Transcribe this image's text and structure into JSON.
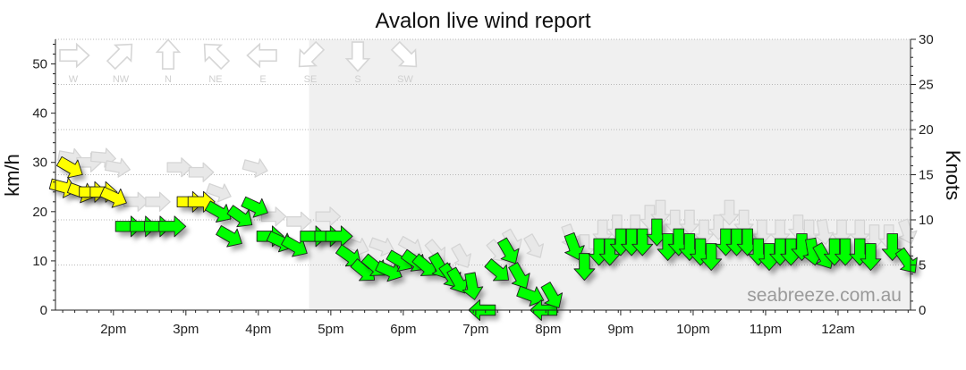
{
  "chart_data": {
    "type": "scatter",
    "title": "Avalon live wind report",
    "ylabel": "km/h",
    "y2label": "Knots",
    "watermark": "seabreeze.com.au",
    "ylim": [
      0,
      55
    ],
    "y2lim": [
      0,
      30
    ],
    "yticks": [
      0,
      10,
      20,
      30,
      40,
      50
    ],
    "y2ticks": [
      0,
      5,
      10,
      15,
      20,
      25,
      30
    ],
    "xlim": [
      13.2,
      25.0
    ],
    "xticks": [
      {
        "x": 14,
        "label": "2pm"
      },
      {
        "x": 15,
        "label": "3pm"
      },
      {
        "x": 16,
        "label": "4pm"
      },
      {
        "x": 17,
        "label": "5pm"
      },
      {
        "x": 18,
        "label": "6pm"
      },
      {
        "x": 19,
        "label": "7pm"
      },
      {
        "x": 20,
        "label": "8pm"
      },
      {
        "x": 21,
        "label": "9pm"
      },
      {
        "x": 22,
        "label": "10pm"
      },
      {
        "x": 23,
        "label": "11pm"
      },
      {
        "x": 24,
        "label": "12am"
      }
    ],
    "grid": "horizontal dotted",
    "night_shading_from": 16.7,
    "compass_legend": [
      {
        "label": "W",
        "angle": 0
      },
      {
        "label": "NW",
        "angle": 45
      },
      {
        "label": "N",
        "angle": 90
      },
      {
        "label": "NE",
        "angle": 135
      },
      {
        "label": "E",
        "angle": 180
      },
      {
        "label": "SE",
        "angle": 225
      },
      {
        "label": "S",
        "angle": 270
      },
      {
        "label": "SW",
        "angle": 315
      }
    ],
    "colors": {
      "light": "#ffff00",
      "moderate": "#00ff00",
      "gust": "#e8e8e8",
      "night": "#f0f0f0"
    },
    "series": [
      {
        "name": "wind",
        "points": [
          {
            "x": 13.3,
            "y": 25,
            "a": -15,
            "c": "light"
          },
          {
            "x": 13.4,
            "y": 29,
            "a": -30,
            "c": "light"
          },
          {
            "x": 13.55,
            "y": 24,
            "a": -20,
            "c": "light"
          },
          {
            "x": 13.7,
            "y": 24,
            "a": 0,
            "c": "light"
          },
          {
            "x": 13.85,
            "y": 24,
            "a": 0,
            "c": "light"
          },
          {
            "x": 14.0,
            "y": 23,
            "a": -25,
            "c": "light"
          },
          {
            "x": 14.2,
            "y": 17,
            "a": 0,
            "c": "moderate"
          },
          {
            "x": 14.4,
            "y": 17,
            "a": 0,
            "c": "moderate"
          },
          {
            "x": 14.6,
            "y": 17,
            "a": 0,
            "c": "moderate"
          },
          {
            "x": 14.8,
            "y": 17,
            "a": 0,
            "c": "moderate"
          },
          {
            "x": 15.05,
            "y": 22,
            "a": 0,
            "c": "light"
          },
          {
            "x": 15.2,
            "y": 22,
            "a": 0,
            "c": "light"
          },
          {
            "x": 15.45,
            "y": 20,
            "a": -30,
            "c": "moderate"
          },
          {
            "x": 15.6,
            "y": 15,
            "a": -30,
            "c": "moderate"
          },
          {
            "x": 15.75,
            "y": 19,
            "a": -35,
            "c": "moderate"
          },
          {
            "x": 15.95,
            "y": 21,
            "a": -25,
            "c": "moderate"
          },
          {
            "x": 16.15,
            "y": 15,
            "a": 0,
            "c": "moderate"
          },
          {
            "x": 16.3,
            "y": 14,
            "a": -25,
            "c": "moderate"
          },
          {
            "x": 16.5,
            "y": 13,
            "a": -30,
            "c": "moderate"
          },
          {
            "x": 16.75,
            "y": 15,
            "a": 0,
            "c": "moderate"
          },
          {
            "x": 16.95,
            "y": 15,
            "a": 0,
            "c": "moderate"
          },
          {
            "x": 17.1,
            "y": 15,
            "a": 0,
            "c": "moderate"
          },
          {
            "x": 17.25,
            "y": 11,
            "a": -35,
            "c": "moderate"
          },
          {
            "x": 17.45,
            "y": 8,
            "a": -40,
            "c": "moderate"
          },
          {
            "x": 17.6,
            "y": 9,
            "a": -40,
            "c": "moderate"
          },
          {
            "x": 17.8,
            "y": 8,
            "a": -25,
            "c": "moderate"
          },
          {
            "x": 17.95,
            "y": 10,
            "a": -30,
            "c": "moderate"
          },
          {
            "x": 18.15,
            "y": 10,
            "a": -35,
            "c": "moderate"
          },
          {
            "x": 18.3,
            "y": 9,
            "a": -40,
            "c": "moderate"
          },
          {
            "x": 18.5,
            "y": 9,
            "a": -60,
            "c": "moderate"
          },
          {
            "x": 18.65,
            "y": 7,
            "a": -55,
            "c": "moderate"
          },
          {
            "x": 18.75,
            "y": 6,
            "a": -60,
            "c": "moderate"
          },
          {
            "x": 18.95,
            "y": 5,
            "a": -80,
            "c": "moderate"
          },
          {
            "x": 19.1,
            "y": 0,
            "a": 180,
            "c": "moderate"
          },
          {
            "x": 19.3,
            "y": 8,
            "a": -40,
            "c": "moderate"
          },
          {
            "x": 19.45,
            "y": 12,
            "a": -60,
            "c": "moderate"
          },
          {
            "x": 19.6,
            "y": 7,
            "a": -60,
            "c": "moderate"
          },
          {
            "x": 19.75,
            "y": 3,
            "a": -20,
            "c": "moderate"
          },
          {
            "x": 19.95,
            "y": 0,
            "a": 180,
            "c": "moderate"
          },
          {
            "x": 20.05,
            "y": 3,
            "a": -60,
            "c": "moderate"
          },
          {
            "x": 20.35,
            "y": 13,
            "a": -70,
            "c": "moderate"
          },
          {
            "x": 20.5,
            "y": 9,
            "a": -90,
            "c": "moderate"
          },
          {
            "x": 20.7,
            "y": 12,
            "a": -90,
            "c": "moderate"
          },
          {
            "x": 20.85,
            "y": 12,
            "a": -90,
            "c": "moderate"
          },
          {
            "x": 21.0,
            "y": 14,
            "a": -90,
            "c": "moderate"
          },
          {
            "x": 21.15,
            "y": 14,
            "a": -90,
            "c": "moderate"
          },
          {
            "x": 21.3,
            "y": 14,
            "a": -90,
            "c": "moderate"
          },
          {
            "x": 21.5,
            "y": 16,
            "a": -90,
            "c": "moderate"
          },
          {
            "x": 21.65,
            "y": 13,
            "a": -90,
            "c": "moderate"
          },
          {
            "x": 21.8,
            "y": 14,
            "a": -90,
            "c": "moderate"
          },
          {
            "x": 21.95,
            "y": 13,
            "a": -90,
            "c": "moderate"
          },
          {
            "x": 22.1,
            "y": 12,
            "a": -90,
            "c": "moderate"
          },
          {
            "x": 22.25,
            "y": 11,
            "a": -90,
            "c": "moderate"
          },
          {
            "x": 22.45,
            "y": 14,
            "a": -90,
            "c": "moderate"
          },
          {
            "x": 22.6,
            "y": 14,
            "a": -90,
            "c": "moderate"
          },
          {
            "x": 22.75,
            "y": 14,
            "a": -90,
            "c": "moderate"
          },
          {
            "x": 22.9,
            "y": 12,
            "a": -90,
            "c": "moderate"
          },
          {
            "x": 23.05,
            "y": 11,
            "a": -90,
            "c": "moderate"
          },
          {
            "x": 23.2,
            "y": 12,
            "a": -90,
            "c": "moderate"
          },
          {
            "x": 23.35,
            "y": 12,
            "a": -90,
            "c": "moderate"
          },
          {
            "x": 23.5,
            "y": 13,
            "a": -90,
            "c": "moderate"
          },
          {
            "x": 23.65,
            "y": 12,
            "a": -80,
            "c": "moderate"
          },
          {
            "x": 23.8,
            "y": 11,
            "a": -60,
            "c": "moderate"
          },
          {
            "x": 23.95,
            "y": 12,
            "a": -90,
            "c": "moderate"
          },
          {
            "x": 24.1,
            "y": 12,
            "a": -90,
            "c": "moderate"
          },
          {
            "x": 24.3,
            "y": 12,
            "a": -90,
            "c": "moderate"
          },
          {
            "x": 24.45,
            "y": 11,
            "a": -90,
            "c": "moderate"
          },
          {
            "x": 24.75,
            "y": 13,
            "a": -90,
            "c": "moderate"
          },
          {
            "x": 24.95,
            "y": 10,
            "a": -55,
            "c": "moderate"
          }
        ]
      },
      {
        "name": "gust",
        "points": [
          {
            "x": 13.4,
            "y": 31,
            "a": -10
          },
          {
            "x": 13.65,
            "y": 30,
            "a": 0
          },
          {
            "x": 13.85,
            "y": 31,
            "a": -5
          },
          {
            "x": 14.05,
            "y": 29,
            "a": -10
          },
          {
            "x": 14.3,
            "y": 22,
            "a": 0
          },
          {
            "x": 14.6,
            "y": 22,
            "a": 0
          },
          {
            "x": 14.9,
            "y": 29,
            "a": 0
          },
          {
            "x": 15.2,
            "y": 28,
            "a": 0
          },
          {
            "x": 15.45,
            "y": 24,
            "a": -20
          },
          {
            "x": 15.95,
            "y": 29,
            "a": -15
          },
          {
            "x": 16.2,
            "y": 19,
            "a": 0
          },
          {
            "x": 16.55,
            "y": 18,
            "a": 0
          },
          {
            "x": 16.95,
            "y": 19,
            "a": 0
          },
          {
            "x": 17.35,
            "y": 13,
            "a": -20
          },
          {
            "x": 17.7,
            "y": 13,
            "a": -20
          },
          {
            "x": 18.1,
            "y": 13,
            "a": -30
          },
          {
            "x": 18.45,
            "y": 12,
            "a": -50
          },
          {
            "x": 18.8,
            "y": 11,
            "a": -60
          },
          {
            "x": 19.3,
            "y": 12,
            "a": -50
          },
          {
            "x": 19.5,
            "y": 14,
            "a": -60
          },
          {
            "x": 19.8,
            "y": 13,
            "a": -60
          },
          {
            "x": 20.3,
            "y": 15,
            "a": -70
          },
          {
            "x": 20.5,
            "y": 13,
            "a": -90
          },
          {
            "x": 20.75,
            "y": 16,
            "a": -90
          },
          {
            "x": 20.95,
            "y": 17,
            "a": -90
          },
          {
            "x": 21.2,
            "y": 17,
            "a": -90
          },
          {
            "x": 21.4,
            "y": 19,
            "a": -90
          },
          {
            "x": 21.55,
            "y": 20,
            "a": -90
          },
          {
            "x": 21.75,
            "y": 18,
            "a": -90
          },
          {
            "x": 21.95,
            "y": 18,
            "a": -90
          },
          {
            "x": 22.15,
            "y": 16,
            "a": -90
          },
          {
            "x": 22.35,
            "y": 17,
            "a": -90
          },
          {
            "x": 22.5,
            "y": 20,
            "a": -90
          },
          {
            "x": 22.7,
            "y": 18,
            "a": -90
          },
          {
            "x": 22.95,
            "y": 16,
            "a": -90
          },
          {
            "x": 23.2,
            "y": 16,
            "a": -90
          },
          {
            "x": 23.45,
            "y": 17,
            "a": -90
          },
          {
            "x": 23.6,
            "y": 16,
            "a": -90
          },
          {
            "x": 23.8,
            "y": 16,
            "a": -80
          },
          {
            "x": 24.05,
            "y": 16,
            "a": -90
          },
          {
            "x": 24.3,
            "y": 16,
            "a": -90
          },
          {
            "x": 24.5,
            "y": 15,
            "a": -90
          },
          {
            "x": 24.7,
            "y": 15,
            "a": -90
          },
          {
            "x": 24.95,
            "y": 16,
            "a": -70
          }
        ]
      }
    ]
  }
}
